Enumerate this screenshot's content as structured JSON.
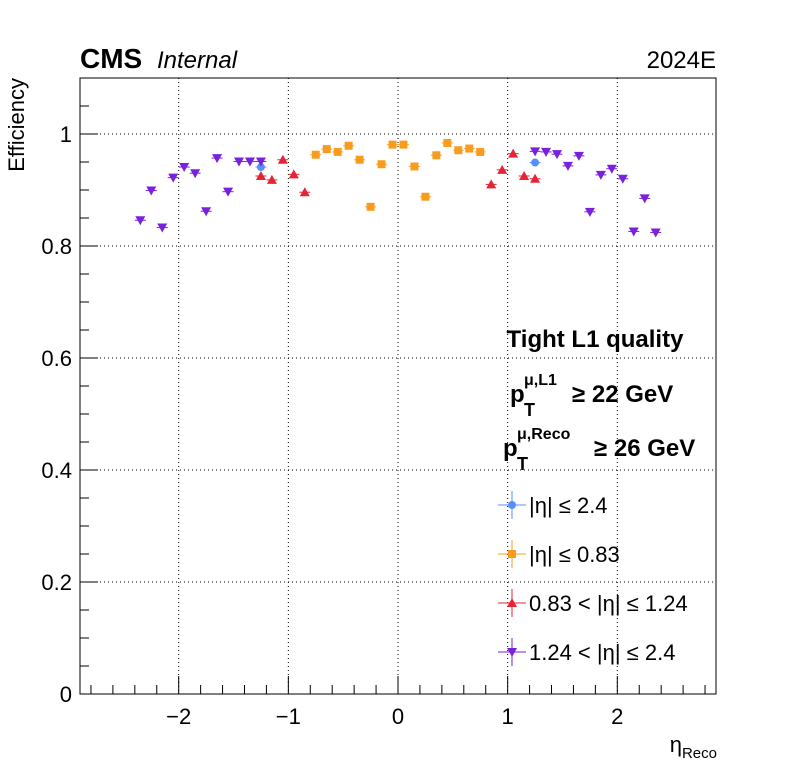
{
  "header": {
    "experiment": "CMS",
    "status": "Internal",
    "era": "2024E"
  },
  "annotations": {
    "quality": "Tight L1 quality",
    "l1_cut": {
      "var": "p",
      "sub": "T",
      "sup": "μ,L1",
      "rest": "≥ 22 GeV"
    },
    "reco_cut": {
      "var": "p",
      "sub": "T",
      "sup": "μ,Reco",
      "rest": "≥ 26 GeV"
    }
  },
  "chart_data": {
    "type": "scatter",
    "title": "",
    "xlabel": {
      "main": "η",
      "sub": "Reco"
    },
    "ylabel": "Efficiency",
    "xlim": [
      -2.9,
      2.9
    ],
    "ylim": [
      0,
      1.1
    ],
    "xticks": [
      -2,
      -1,
      0,
      1,
      2
    ],
    "xtick_labels": [
      "−2",
      "−1",
      "0",
      "1",
      "2"
    ],
    "yticks": [
      0,
      0.2,
      0.4,
      0.6,
      0.8,
      1
    ],
    "ytick_labels": [
      "0",
      "0.2",
      "0.4",
      "0.6",
      "0.8",
      "1"
    ],
    "grid": true,
    "x_error": 0.05,
    "legend_position": "lower-right",
    "series": [
      {
        "name": "|η| ≤ 2.4",
        "color": "#5790fc",
        "marker": "circle",
        "points": [
          [
            -1.25,
            0.941
          ],
          [
            1.25,
            0.949
          ]
        ]
      },
      {
        "name": "|η| ≤ 0.83",
        "color": "#f89c20",
        "marker": "square",
        "points": [
          [
            -0.75,
            0.963
          ],
          [
            -0.65,
            0.973
          ],
          [
            -0.55,
            0.968
          ],
          [
            -0.45,
            0.979
          ],
          [
            -0.35,
            0.954
          ],
          [
            -0.25,
            0.87
          ],
          [
            -0.15,
            0.946
          ],
          [
            -0.05,
            0.981
          ],
          [
            0.05,
            0.981
          ],
          [
            0.15,
            0.942
          ],
          [
            0.25,
            0.888
          ],
          [
            0.35,
            0.962
          ],
          [
            0.45,
            0.984
          ],
          [
            0.55,
            0.971
          ],
          [
            0.65,
            0.974
          ],
          [
            0.75,
            0.968
          ]
        ]
      },
      {
        "name": "0.83 < |η| ≤ 1.24",
        "color": "#e42536",
        "marker": "triangle-up",
        "points": [
          [
            -1.25,
            0.925
          ],
          [
            -1.15,
            0.918
          ],
          [
            -1.05,
            0.954
          ],
          [
            -0.95,
            0.928
          ],
          [
            -0.85,
            0.896
          ],
          [
            0.85,
            0.91
          ],
          [
            0.95,
            0.936
          ],
          [
            1.05,
            0.965
          ],
          [
            1.15,
            0.925
          ],
          [
            1.25,
            0.92
          ]
        ]
      },
      {
        "name": "1.24 < |η| ≤ 2.4",
        "color": "#7a21dd",
        "marker": "triangle-down",
        "points": [
          [
            -2.35,
            0.846
          ],
          [
            -2.25,
            0.899
          ],
          [
            -2.15,
            0.833
          ],
          [
            -2.05,
            0.922
          ],
          [
            -1.95,
            0.941
          ],
          [
            -1.85,
            0.93
          ],
          [
            -1.75,
            0.862
          ],
          [
            -1.65,
            0.957
          ],
          [
            -1.55,
            0.897
          ],
          [
            -1.45,
            0.951
          ],
          [
            -1.35,
            0.951
          ],
          [
            -1.25,
            0.951
          ],
          [
            1.25,
            0.969
          ],
          [
            1.35,
            0.968
          ],
          [
            1.45,
            0.964
          ],
          [
            1.55,
            0.943
          ],
          [
            1.65,
            0.961
          ],
          [
            1.75,
            0.861
          ],
          [
            1.85,
            0.927
          ],
          [
            1.95,
            0.938
          ],
          [
            2.05,
            0.92
          ],
          [
            2.15,
            0.826
          ],
          [
            2.25,
            0.885
          ],
          [
            2.35,
            0.824
          ]
        ]
      }
    ]
  }
}
